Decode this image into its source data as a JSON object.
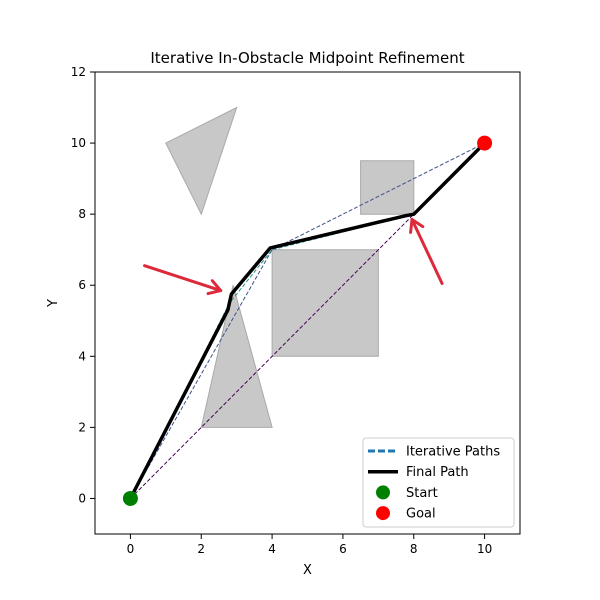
{
  "chart_data": {
    "type": "line",
    "title": "Iterative In-Obstacle Midpoint Refinement",
    "xlabel": "X",
    "ylabel": "Y",
    "xlim": [
      -1,
      11
    ],
    "ylim": [
      -1,
      12
    ],
    "xticks": [
      0,
      2,
      4,
      6,
      8,
      10
    ],
    "yticks": [
      0,
      2,
      4,
      6,
      8,
      10,
      12
    ],
    "grid": false,
    "legend_position": "lower-right",
    "obstacles": [
      {
        "shape": "triangle",
        "points": [
          [
            1,
            10
          ],
          [
            3,
            11
          ],
          [
            2,
            8
          ]
        ]
      },
      {
        "shape": "triangle",
        "points": [
          [
            2,
            2
          ],
          [
            4,
            2
          ],
          [
            2.9,
            6
          ]
        ]
      },
      {
        "shape": "rectangle",
        "points": [
          [
            4,
            4
          ],
          [
            7,
            4
          ],
          [
            7,
            7
          ],
          [
            4,
            7
          ]
        ]
      },
      {
        "shape": "rectangle",
        "points": [
          [
            6.5,
            8
          ],
          [
            8,
            8
          ],
          [
            8,
            9.5
          ],
          [
            6.5,
            9.5
          ]
        ]
      }
    ],
    "obstacle_color": "#c8c8c8",
    "iterative_paths": [
      {
        "color": "#440154",
        "points": [
          [
            0,
            0
          ],
          [
            8,
            8
          ],
          [
            10,
            10
          ]
        ]
      },
      {
        "color": "#3b528b",
        "points": [
          [
            0,
            0
          ],
          [
            4,
            7
          ],
          [
            10,
            10
          ]
        ]
      },
      {
        "color": "#21918c",
        "points": [
          [
            0,
            0
          ],
          [
            2.8,
            5.5
          ],
          [
            4,
            7
          ],
          [
            8,
            8
          ],
          [
            10,
            10
          ]
        ]
      }
    ],
    "final_path": {
      "color": "#000000",
      "points": [
        [
          0,
          0
        ],
        [
          2.75,
          5.3
        ],
        [
          2.85,
          5.75
        ],
        [
          3.95,
          7.05
        ],
        [
          7.75,
          7.95
        ],
        [
          8,
          8
        ],
        [
          10,
          10
        ]
      ]
    },
    "start": {
      "x": 0,
      "y": 0,
      "color": "#008000"
    },
    "goal": {
      "x": 10,
      "y": 10,
      "color": "#ff0000"
    },
    "annotation_arrows": [
      {
        "color": "#dc2a3a",
        "from": [
          0.4,
          6.55
        ],
        "to": [
          2.55,
          5.85
        ]
      },
      {
        "color": "#dc2a3a",
        "from": [
          8.8,
          6.05
        ],
        "to": [
          7.95,
          7.85
        ]
      }
    ],
    "legend": [
      {
        "label": "Iterative Paths",
        "kind": "dashed-line",
        "color": "#1f77b4"
      },
      {
        "label": "Final Path",
        "kind": "line",
        "color": "#000000"
      },
      {
        "label": "Start",
        "kind": "marker",
        "color": "#008000"
      },
      {
        "label": "Goal",
        "kind": "marker",
        "color": "#ff0000"
      }
    ]
  }
}
